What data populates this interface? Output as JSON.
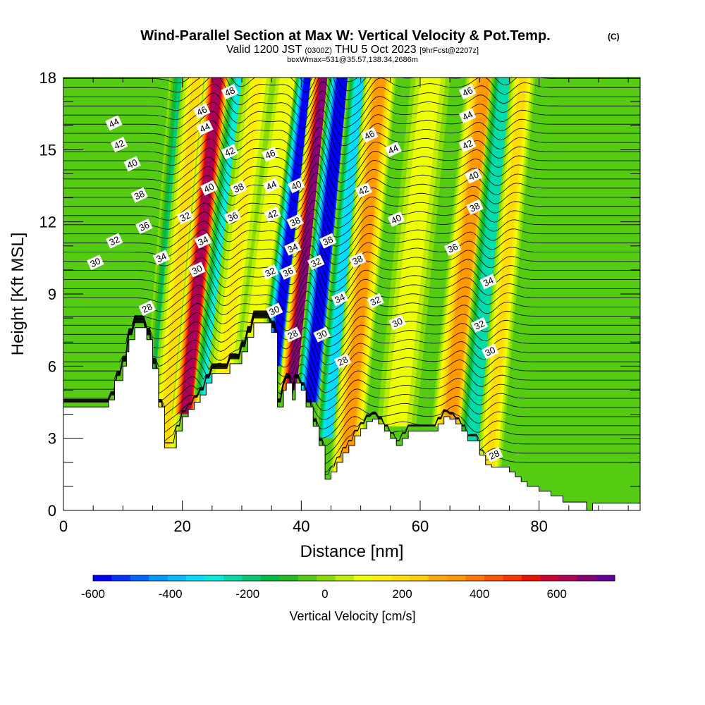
{
  "title": {
    "main": "Wind-Parallel Section at Max W: Vertical Velocity & Pot.Temp.",
    "copyright": "(C)",
    "valid_prefix": "Valid 1200 JST",
    "valid_utc": "(0300Z)",
    "valid_date": "THU 5 Oct 2023",
    "forecast": "[9hrFcst@2207z]",
    "box": "boxWmax=531@35.57,138.34,2686m"
  },
  "chart_data": {
    "type": "heatmap",
    "title": "Wind-Parallel Section at Max W: Vertical Velocity & Pot.Temp.",
    "xlabel": "Distance [nm]",
    "ylabel": "Height [Kft MSL]",
    "xlim": [
      0,
      97
    ],
    "ylim": [
      0,
      18
    ],
    "x_ticks": [
      0,
      20,
      40,
      60,
      80
    ],
    "x_tick_labels": [
      "0",
      "20",
      "40",
      "60",
      "80"
    ],
    "y_ticks": [
      0,
      3,
      6,
      9,
      12,
      15,
      18
    ],
    "y_tick_labels": [
      "0",
      "3",
      "6",
      "9",
      "12",
      "15",
      "18"
    ],
    "colorbar": {
      "label": "Vertical Velocity [cm/s]",
      "tick_values": [
        -600,
        -400,
        -200,
        0,
        200,
        400,
        600
      ],
      "tick_labels": [
        "-600",
        "-400",
        "-200",
        "0",
        "200",
        "400",
        "600"
      ],
      "range": [
        -600,
        750
      ],
      "colors": [
        "#0000ff",
        "#0033ff",
        "#0066ff",
        "#0099ff",
        "#00bbff",
        "#00ddff",
        "#00eedd",
        "#00ddaa",
        "#00cc77",
        "#00bb44",
        "#22bb22",
        "#55cc11",
        "#88dd00",
        "#bbee00",
        "#eeff00",
        "#ffee00",
        "#ffdd00",
        "#ffcc00",
        "#ffaa00",
        "#ff9900",
        "#ff7700",
        "#ff5500",
        "#ff3300",
        "#ee1100",
        "#cc0033",
        "#aa0055",
        "#880077",
        "#660099"
      ]
    },
    "terrain_profile": {
      "x": [
        0,
        7.6,
        7.6,
        8.6,
        8.6,
        10,
        10,
        10.6,
        10.6,
        11,
        11,
        12,
        12,
        14,
        14,
        15,
        15,
        16,
        16,
        17,
        17,
        19,
        19,
        20,
        20,
        21,
        21,
        22,
        22,
        23,
        23,
        24,
        24,
        25,
        25,
        26,
        26,
        28,
        28,
        30,
        30,
        31,
        31,
        32,
        32,
        35,
        35,
        36,
        36,
        37,
        37,
        37.5,
        37.5,
        38.5,
        38.5,
        39,
        39,
        40,
        40,
        40.8,
        40.8,
        42,
        42,
        43,
        43,
        44,
        44,
        45,
        45,
        46,
        46,
        47,
        47,
        48,
        48,
        49,
        49,
        50,
        50,
        51,
        51,
        52,
        52,
        53,
        53,
        54,
        54,
        55,
        55,
        56,
        56,
        57,
        57,
        58,
        58,
        63,
        63,
        64,
        64,
        65,
        65,
        66,
        66,
        67,
        67,
        68,
        68,
        70,
        70,
        71,
        71,
        72,
        72,
        75,
        75,
        76,
        76,
        77,
        77,
        78,
        78,
        80,
        80,
        82,
        82,
        84,
        84,
        88,
        88,
        89,
        89,
        97
      ],
      "z": [
        4.3,
        4.3,
        4.6,
        4.6,
        5.4,
        5.4,
        6.0,
        6.0,
        6.6,
        6.6,
        7.1,
        7.1,
        7.6,
        7.6,
        7.1,
        7.1,
        5.9,
        5.9,
        4.3,
        4.3,
        2.6,
        2.6,
        3.3,
        3.3,
        3.9,
        3.9,
        4.2,
        4.2,
        4.5,
        4.5,
        4.8,
        4.8,
        5.3,
        5.3,
        5.7,
        5.7,
        5.7,
        5.7,
        6.1,
        6.1,
        6.6,
        6.6,
        7.2,
        7.2,
        7.8,
        7.8,
        7.4,
        7.4,
        4.3,
        4.3,
        5.0,
        5.0,
        5.3,
        5.3,
        4.6,
        4.6,
        5.3,
        5.3,
        5.0,
        5.0,
        4.3,
        4.3,
        3.5,
        3.5,
        2.7,
        2.7,
        1.3,
        1.3,
        1.6,
        1.6,
        2.0,
        2.0,
        2.4,
        2.4,
        2.7,
        2.7,
        3.1,
        3.1,
        3.4,
        3.4,
        3.7,
        3.7,
        3.8,
        3.8,
        3.6,
        3.6,
        3.3,
        3.3,
        3.0,
        3.0,
        2.7,
        2.7,
        3.0,
        3.0,
        3.3,
        3.3,
        3.6,
        3.6,
        3.9,
        3.9,
        3.8,
        3.8,
        3.6,
        3.6,
        3.3,
        3.3,
        2.9,
        2.9,
        2.3,
        2.3,
        1.9,
        1.9,
        1.8,
        1.8,
        1.6,
        1.6,
        1.4,
        1.4,
        1.2,
        1.2,
        1.0,
        1.0,
        0.8,
        0.8,
        0.6,
        0.6,
        0.35,
        0.35,
        0.0,
        0.0,
        0.3,
        0.3
      ]
    },
    "velocity_bands": [
      {
        "x": 14.5,
        "z": [
          0,
          18
        ],
        "slope": 0.3,
        "value": -180,
        "width": 1.8
      },
      {
        "x": 17.0,
        "z": [
          2.6,
          18
        ],
        "slope": 0.3,
        "value": 200,
        "width": 2.2
      },
      {
        "x": 20.5,
        "z": [
          4,
          18
        ],
        "slope": 0.3,
        "value": 650,
        "width": 2.0
      },
      {
        "x": 24.0,
        "z": [
          4.8,
          18
        ],
        "slope": 0.32,
        "value": -300,
        "width": 1.8
      },
      {
        "x": 27.0,
        "z": [
          5.7,
          18
        ],
        "slope": 0.32,
        "value": 130,
        "width": 2.4
      },
      {
        "x": 32.0,
        "z": [
          7.2,
          18
        ],
        "slope": 0.32,
        "value": 120,
        "width": 2.2
      },
      {
        "x": 35.5,
        "z": [
          6,
          18
        ],
        "slope": 0.32,
        "value": -560,
        "width": 2.0
      },
      {
        "x": 38.5,
        "z": [
          5,
          18
        ],
        "slope": 0.3,
        "value": 700,
        "width": 2.0
      },
      {
        "x": 41.5,
        "z": [
          4.5,
          18
        ],
        "slope": 0.3,
        "value": -620,
        "width": 2.2
      },
      {
        "x": 44.5,
        "z": [
          3,
          18
        ],
        "slope": 0.3,
        "value": -350,
        "width": 1.8
      },
      {
        "x": 47.5,
        "z": [
          1.5,
          18
        ],
        "slope": 0.32,
        "value": 320,
        "width": 2.4
      },
      {
        "x": 56.0,
        "z": [
          3.5,
          18
        ],
        "slope": 0.32,
        "value": 120,
        "width": 3.0
      },
      {
        "x": 65.0,
        "z": [
          3.5,
          18
        ],
        "slope": 0.32,
        "value": 350,
        "width": 2.8
      },
      {
        "x": 68.5,
        "z": [
          2,
          18
        ],
        "slope": 0.32,
        "value": -260,
        "width": 2.0
      },
      {
        "x": 71.5,
        "z": [
          1.6,
          18
        ],
        "slope": 0.32,
        "value": 180,
        "width": 1.8
      }
    ],
    "theta_contour_levels": [
      28,
      30,
      32,
      34,
      36,
      38,
      40,
      42,
      44,
      46,
      48
    ],
    "contour_labels": [
      {
        "text": "44",
        "x": 8.5,
        "z": 16.1
      },
      {
        "text": "42",
        "x": 9.4,
        "z": 15.2
      },
      {
        "text": "40",
        "x": 11.6,
        "z": 14.4
      },
      {
        "text": "38",
        "x": 12.8,
        "z": 13.1
      },
      {
        "text": "36",
        "x": 13.6,
        "z": 11.8
      },
      {
        "text": "32",
        "x": 8.6,
        "z": 11.2
      },
      {
        "text": "30",
        "x": 5.4,
        "z": 10.3
      },
      {
        "text": "34",
        "x": 16.5,
        "z": 10.5
      },
      {
        "text": "28",
        "x": 14.1,
        "z": 8.4
      },
      {
        "text": "46",
        "x": 23.3,
        "z": 16.6
      },
      {
        "text": "44",
        "x": 23.8,
        "z": 15.9
      },
      {
        "text": "48",
        "x": 28.0,
        "z": 17.4
      },
      {
        "text": "42",
        "x": 28.0,
        "z": 14.9
      },
      {
        "text": "40",
        "x": 24.5,
        "z": 13.4
      },
      {
        "text": "38",
        "x": 29.5,
        "z": 13.4
      },
      {
        "text": "36",
        "x": 28.5,
        "z": 12.2
      },
      {
        "text": "32",
        "x": 20.5,
        "z": 12.2
      },
      {
        "text": "34",
        "x": 23.5,
        "z": 11.2
      },
      {
        "text": "30",
        "x": 22.5,
        "z": 10.0
      },
      {
        "text": "46",
        "x": 34.8,
        "z": 14.8
      },
      {
        "text": "44",
        "x": 35.0,
        "z": 13.5
      },
      {
        "text": "42",
        "x": 35.2,
        "z": 12.3
      },
      {
        "text": "40",
        "x": 39.2,
        "z": 13.5
      },
      {
        "text": "38",
        "x": 39.0,
        "z": 12.0
      },
      {
        "text": "34",
        "x": 38.6,
        "z": 10.9
      },
      {
        "text": "36",
        "x": 37.8,
        "z": 9.9
      },
      {
        "text": "32",
        "x": 34.8,
        "z": 9.9
      },
      {
        "text": "30",
        "x": 35.5,
        "z": 8.3
      },
      {
        "text": "28",
        "x": 38.6,
        "z": 7.3
      },
      {
        "text": "38",
        "x": 44.5,
        "z": 11.2
      },
      {
        "text": "32",
        "x": 42.5,
        "z": 10.3
      },
      {
        "text": "30",
        "x": 43.5,
        "z": 7.3
      },
      {
        "text": "34",
        "x": 46.5,
        "z": 8.8
      },
      {
        "text": "28",
        "x": 47.0,
        "z": 6.2
      },
      {
        "text": "46",
        "x": 51.5,
        "z": 15.6
      },
      {
        "text": "44",
        "x": 55.5,
        "z": 15.0
      },
      {
        "text": "42",
        "x": 50.5,
        "z": 13.3
      },
      {
        "text": "40",
        "x": 56.0,
        "z": 12.1
      },
      {
        "text": "38",
        "x": 49.5,
        "z": 10.4
      },
      {
        "text": "32",
        "x": 52.5,
        "z": 8.7
      },
      {
        "text": "30",
        "x": 56.2,
        "z": 7.8
      },
      {
        "text": "46",
        "x": 68.0,
        "z": 17.4
      },
      {
        "text": "44",
        "x": 68.0,
        "z": 16.4
      },
      {
        "text": "42",
        "x": 68.0,
        "z": 15.2
      },
      {
        "text": "40",
        "x": 69.0,
        "z": 13.9
      },
      {
        "text": "38",
        "x": 69.2,
        "z": 12.6
      },
      {
        "text": "36",
        "x": 65.5,
        "z": 10.9
      },
      {
        "text": "34",
        "x": 71.5,
        "z": 9.5
      },
      {
        "text": "32",
        "x": 70.0,
        "z": 7.7
      },
      {
        "text": "30",
        "x": 71.8,
        "z": 6.6
      },
      {
        "text": "28",
        "x": 72.5,
        "z": 2.3
      }
    ]
  }
}
